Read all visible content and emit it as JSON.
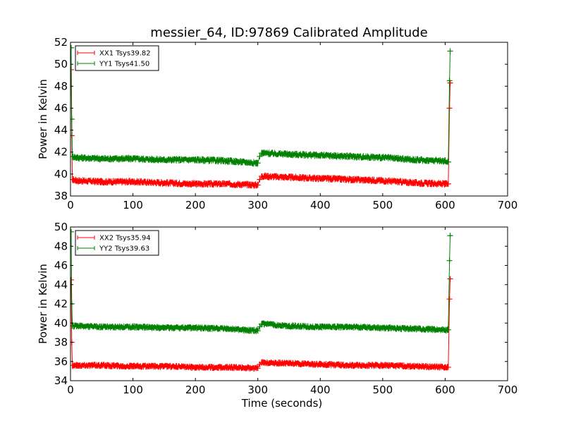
{
  "chart_data": [
    {
      "type": "line",
      "title": "messier_64, ID:97869 Calibrated Amplitude",
      "xlabel": "",
      "ylabel": "Power in Kelvin",
      "xlim": [
        0,
        700
      ],
      "ylim": [
        38,
        52
      ],
      "xticks": [
        0,
        100,
        200,
        300,
        400,
        500,
        600,
        700
      ],
      "yticks": [
        38,
        40,
        42,
        44,
        46,
        48,
        50,
        52
      ],
      "legend_position": "top-left",
      "series": [
        {
          "name": "XX1 Tsys39.82",
          "color": "#ff0000",
          "x": [
            1,
            2,
            3,
            10,
            50,
            100,
            150,
            200,
            250,
            300,
            303,
            306,
            310,
            350,
            400,
            450,
            500,
            550,
            600,
            605,
            607,
            608
          ],
          "y": [
            49.5,
            43.5,
            39.5,
            39.4,
            39.3,
            39.3,
            39.2,
            39.1,
            39.1,
            39.0,
            39.5,
            39.8,
            39.8,
            39.7,
            39.6,
            39.5,
            39.4,
            39.2,
            39.1,
            39.1,
            46.0,
            48.3
          ]
        },
        {
          "name": "YY1 Tsys41.50",
          "color": "#008000",
          "x": [
            1,
            2,
            3,
            10,
            50,
            100,
            150,
            200,
            250,
            300,
            303,
            306,
            310,
            350,
            400,
            450,
            500,
            550,
            600,
            605,
            607,
            608
          ],
          "y": [
            51.5,
            45.0,
            41.6,
            41.5,
            41.4,
            41.4,
            41.3,
            41.3,
            41.2,
            41.0,
            41.6,
            41.9,
            41.9,
            41.8,
            41.7,
            41.6,
            41.5,
            41.3,
            41.2,
            41.1,
            48.5,
            51.2
          ]
        }
      ]
    },
    {
      "type": "line",
      "title": "",
      "xlabel": "Time (seconds)",
      "ylabel": "Power in Kelvin",
      "xlim": [
        0,
        700
      ],
      "ylim": [
        34,
        50
      ],
      "xticks": [
        0,
        100,
        200,
        300,
        400,
        500,
        600,
        700
      ],
      "yticks": [
        34,
        36,
        38,
        40,
        42,
        44,
        46,
        48,
        50
      ],
      "legend_position": "top-left",
      "series": [
        {
          "name": "XX2 Tsys35.94",
          "color": "#ff0000",
          "x": [
            1,
            2,
            3,
            10,
            50,
            100,
            150,
            200,
            250,
            300,
            303,
            306,
            310,
            350,
            400,
            450,
            500,
            550,
            600,
            605,
            607,
            608
          ],
          "y": [
            44.5,
            38.0,
            35.6,
            35.6,
            35.6,
            35.5,
            35.5,
            35.4,
            35.4,
            35.3,
            35.7,
            35.9,
            35.9,
            35.8,
            35.7,
            35.6,
            35.6,
            35.5,
            35.4,
            35.4,
            42.5,
            44.6
          ]
        },
        {
          "name": "YY2 Tsys39.63",
          "color": "#008000",
          "x": [
            1,
            2,
            3,
            10,
            50,
            100,
            150,
            200,
            250,
            300,
            303,
            306,
            310,
            350,
            400,
            450,
            500,
            550,
            600,
            605,
            607,
            608
          ],
          "y": [
            49.5,
            42.0,
            39.7,
            39.7,
            39.6,
            39.6,
            39.5,
            39.5,
            39.4,
            39.2,
            39.6,
            39.9,
            39.9,
            39.7,
            39.6,
            39.6,
            39.5,
            39.4,
            39.3,
            39.3,
            46.5,
            49.1
          ]
        }
      ]
    }
  ]
}
